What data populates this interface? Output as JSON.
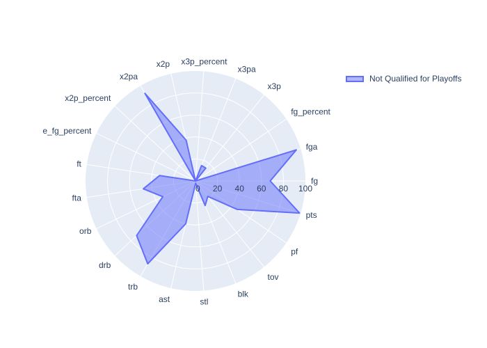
{
  "chart_data": {
    "type": "radar",
    "title": "",
    "angular_axis": {
      "categories": [
        "fg",
        "fga",
        "fg_percent",
        "x3p",
        "x3pa",
        "x3p_percent",
        "x2p",
        "x2pa",
        "x2p_percent",
        "e_fg_percent",
        "ft",
        "fta",
        "orb",
        "drb",
        "trb",
        "ast",
        "stl",
        "blk",
        "tov",
        "pf",
        "pts"
      ]
    },
    "radial_axis": {
      "range": [
        0,
        100
      ],
      "ticks": [
        0,
        20,
        40,
        60,
        80,
        100
      ]
    },
    "grid": true,
    "legend_position": "top-right",
    "series": [
      {
        "name": "Not Qualified for Playoffs",
        "color": "#636efa",
        "fill": "toself",
        "values": [
          68,
          96,
          0,
          15,
          15,
          0,
          38,
          92,
          0,
          0,
          33,
          48,
          33,
          73,
          87,
          40,
          2,
          24,
          18,
          46,
          99
        ]
      }
    ]
  }
}
